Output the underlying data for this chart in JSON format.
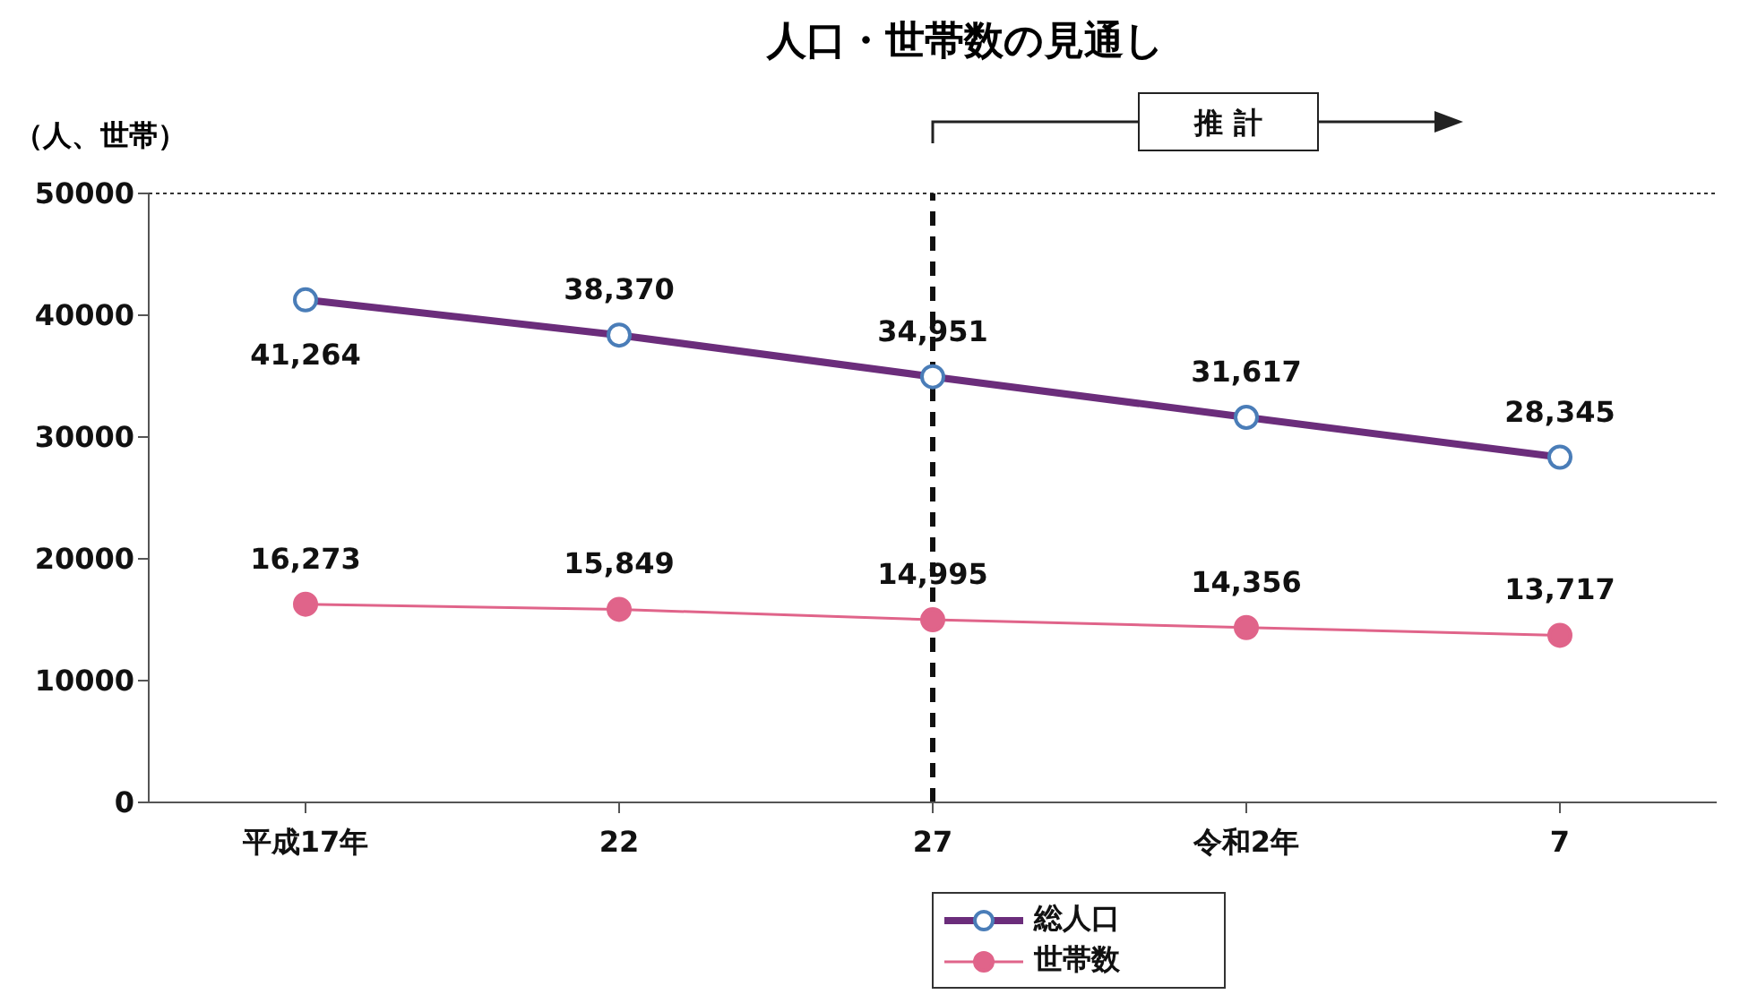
{
  "chart_data": {
    "type": "line",
    "title": "人口・世帯数の見通し",
    "ylabel": "（人、世帯）",
    "categories": [
      "平成17年",
      "22",
      "27",
      "令和2年",
      "7"
    ],
    "series": [
      {
        "name": "総人口",
        "color": "#6b2d7b",
        "values": [
          41264,
          38370,
          34951,
          31617,
          28345
        ],
        "value_labels": [
          "41,264",
          "38,370",
          "34,951",
          "31,617",
          "28,345"
        ]
      },
      {
        "name": "世帯数",
        "color": "#e0648a",
        "values": [
          16273,
          15849,
          14995,
          14356,
          13717
        ],
        "value_labels": [
          "16,273",
          "15,849",
          "14,995",
          "14,356",
          "13,717"
        ]
      }
    ],
    "ylim": [
      0,
      50000
    ],
    "yticks": [
      0,
      10000,
      20000,
      30000,
      40000,
      50000
    ],
    "ref_lines": [
      {
        "axis": "x",
        "value": "27",
        "line_style": "dashed",
        "color": "#111111"
      }
    ],
    "annotations": [
      "推 計"
    ],
    "legend": "bottom",
    "marker": "circle",
    "grid": false
  }
}
